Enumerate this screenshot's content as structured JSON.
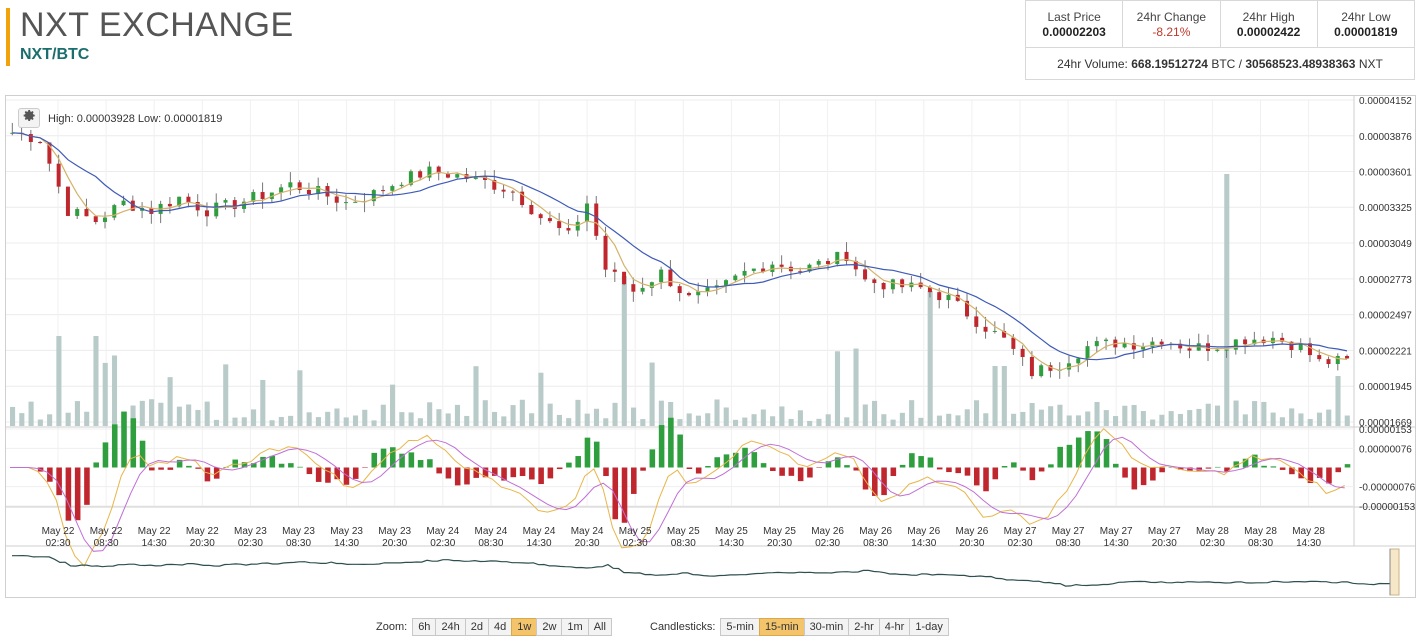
{
  "header": {
    "title": "NXT EXCHANGE",
    "pair": "NXT/BTC"
  },
  "stats": {
    "last_price_label": "Last Price",
    "last_price": "0.00002203",
    "change_label": "24hr Change",
    "change": "-8.21%",
    "high_label": "24hr High",
    "high": "0.00002422",
    "low_label": "24hr Low",
    "low": "0.00001819",
    "volume_prefix": "24hr Volume:",
    "volume_btc": "668.19512724",
    "volume_btc_unit": "BTC /",
    "volume_nxt": "30568523.48938363",
    "volume_nxt_unit": "NXT"
  },
  "chart": {
    "hilo_text": "High: 0.00003928   Low: 0.00001819",
    "price_ticks": [
      "0.00004152",
      "0.00003876",
      "0.00003601",
      "0.00003325",
      "0.00003049",
      "0.00002773",
      "0.00002497",
      "0.00002221",
      "0.00001945",
      "0.00001669"
    ],
    "macd_ticks": [
      "0.00000153",
      "0.00000076",
      "-0.00000076",
      "-0.00000153"
    ],
    "x_labels": [
      [
        "May 22",
        "02:30"
      ],
      [
        "May 22",
        "08:30"
      ],
      [
        "May 22",
        "14:30"
      ],
      [
        "May 22",
        "20:30"
      ],
      [
        "May 23",
        "02:30"
      ],
      [
        "May 23",
        "08:30"
      ],
      [
        "May 23",
        "14:30"
      ],
      [
        "May 23",
        "20:30"
      ],
      [
        "May 24",
        "02:30"
      ],
      [
        "May 24",
        "08:30"
      ],
      [
        "May 24",
        "14:30"
      ],
      [
        "May 24",
        "20:30"
      ],
      [
        "May 25",
        "02:30"
      ],
      [
        "May 25",
        "08:30"
      ],
      [
        "May 25",
        "14:30"
      ],
      [
        "May 25",
        "20:30"
      ],
      [
        "May 26",
        "02:30"
      ],
      [
        "May 26",
        "08:30"
      ],
      [
        "May 26",
        "14:30"
      ],
      [
        "May 26",
        "20:30"
      ],
      [
        "May 27",
        "02:30"
      ],
      [
        "May 27",
        "08:30"
      ],
      [
        "May 27",
        "14:30"
      ],
      [
        "May 27",
        "20:30"
      ],
      [
        "May 28",
        "02:30"
      ],
      [
        "May 28",
        "08:30"
      ],
      [
        "May 28",
        "14:30"
      ]
    ],
    "price_anchors": [
      [
        0,
        3.9e-05
      ],
      [
        3,
        3.85e-05
      ],
      [
        6,
        3.3e-05
      ],
      [
        9,
        3.22e-05
      ],
      [
        12,
        3.36e-05
      ],
      [
        15,
        3.3e-05
      ],
      [
        18,
        3.4e-05
      ],
      [
        21,
        3.3e-05
      ],
      [
        24,
        3.35e-05
      ],
      [
        27,
        3.42e-05
      ],
      [
        30,
        3.5e-05
      ],
      [
        33,
        3.44e-05
      ],
      [
        36,
        3.36e-05
      ],
      [
        39,
        3.43e-05
      ],
      [
        42,
        3.54e-05
      ],
      [
        45,
        3.6e-05
      ],
      [
        48,
        3.57e-05
      ],
      [
        51,
        3.52e-05
      ],
      [
        54,
        3.45e-05
      ],
      [
        57,
        3.25e-05
      ],
      [
        60,
        3.1e-05
      ],
      [
        62,
        3.36e-05
      ],
      [
        64,
        2.85e-05
      ],
      [
        67,
        2.68e-05
      ],
      [
        70,
        2.82e-05
      ],
      [
        73,
        2.62e-05
      ],
      [
        76,
        2.68e-05
      ],
      [
        79,
        2.82e-05
      ],
      [
        82,
        2.9e-05
      ],
      [
        85,
        2.84e-05
      ],
      [
        88,
        2.91e-05
      ],
      [
        90,
        2.96e-05
      ],
      [
        92,
        2.76e-05
      ],
      [
        95,
        2.72e-05
      ],
      [
        98,
        2.7e-05
      ],
      [
        101,
        2.62e-05
      ],
      [
        104,
        2.45e-05
      ],
      [
        107,
        2.3e-05
      ],
      [
        110,
        2.05e-05
      ],
      [
        113,
        2.12e-05
      ],
      [
        116,
        2.25e-05
      ],
      [
        119,
        2.28e-05
      ],
      [
        122,
        2.27e-05
      ],
      [
        124,
        2.31e-05
      ],
      [
        127,
        2.24e-05
      ],
      [
        130,
        2.26e-05
      ],
      [
        133,
        2.31e-05
      ],
      [
        136,
        2.32e-05
      ],
      [
        139,
        2.25e-05
      ],
      [
        141,
        2.13e-05
      ],
      [
        145,
        2.14e-05
      ]
    ],
    "zoom_label": "Zoom:",
    "zoom_options": [
      "6h",
      "24h",
      "2d",
      "4d",
      "1w",
      "2w",
      "1m",
      "All"
    ],
    "zoom_active": "1w",
    "candle_label": "Candlesticks:",
    "candle_options": [
      "5-min",
      "15-min",
      "30-min",
      "2-hr",
      "4-hr",
      "1-day"
    ],
    "candle_active": "15-min",
    "colors": {
      "up": "#2e9e3e",
      "down": "#c0262d",
      "ma_fast": "#d4b26a",
      "ma_slow": "#3e5ab8",
      "volume": "#b9cbc9",
      "macd_line": "#e8b64a",
      "signal_line": "#c06fd6",
      "nav_line": "#2f4f4f"
    }
  }
}
